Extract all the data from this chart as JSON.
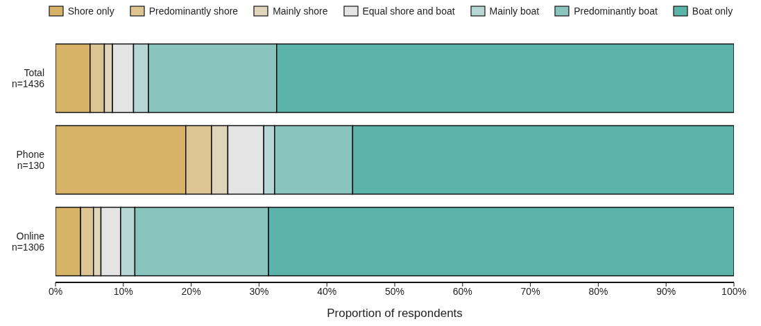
{
  "chart_data": {
    "type": "bar",
    "orientation": "horizontal",
    "stacked": true,
    "xlabel": "Proportion of respondents",
    "categories": [
      "Total n=1436",
      "Phone n=130",
      "Online n=1306"
    ],
    "series": [
      {
        "name": "Shore only",
        "color": "#d6b366",
        "values": [
          5.1,
          19.2,
          3.7
        ]
      },
      {
        "name": "Predominantly shore",
        "color": "#dcc493",
        "values": [
          2.1,
          3.8,
          1.9
        ]
      },
      {
        "name": "Mainly shore",
        "color": "#e0d5b9",
        "values": [
          1.2,
          2.4,
          1.1
        ]
      },
      {
        "name": "Equal shore and boat",
        "color": "#e4e4e4",
        "values": [
          3.1,
          5.3,
          2.9
        ]
      },
      {
        "name": "Mainly boat",
        "color": "#b7d7d6",
        "values": [
          2.2,
          1.6,
          2.1
        ]
      },
      {
        "name": "Predominantly boat",
        "color": "#89c4be",
        "values": [
          18.9,
          11.5,
          19.7
        ]
      },
      {
        "name": "Boat only",
        "color": "#5bb3aa",
        "values": [
          67.4,
          56.2,
          68.6
        ]
      }
    ],
    "xlim": [
      0,
      100
    ],
    "xticks": [
      {
        "value": 0,
        "label": "0%"
      },
      {
        "value": 10,
        "label": "10%"
      },
      {
        "value": 20,
        "label": "20%"
      },
      {
        "value": 30,
        "label": "30%"
      },
      {
        "value": 40,
        "label": "40%"
      },
      {
        "value": 50,
        "label": "50%"
      },
      {
        "value": 60,
        "label": "60%"
      },
      {
        "value": 70,
        "label": "70%"
      },
      {
        "value": 80,
        "label": "80%"
      },
      {
        "value": 90,
        "label": "90%"
      },
      {
        "value": 100,
        "label": "100%"
      }
    ],
    "grid": false,
    "legend": "top"
  }
}
